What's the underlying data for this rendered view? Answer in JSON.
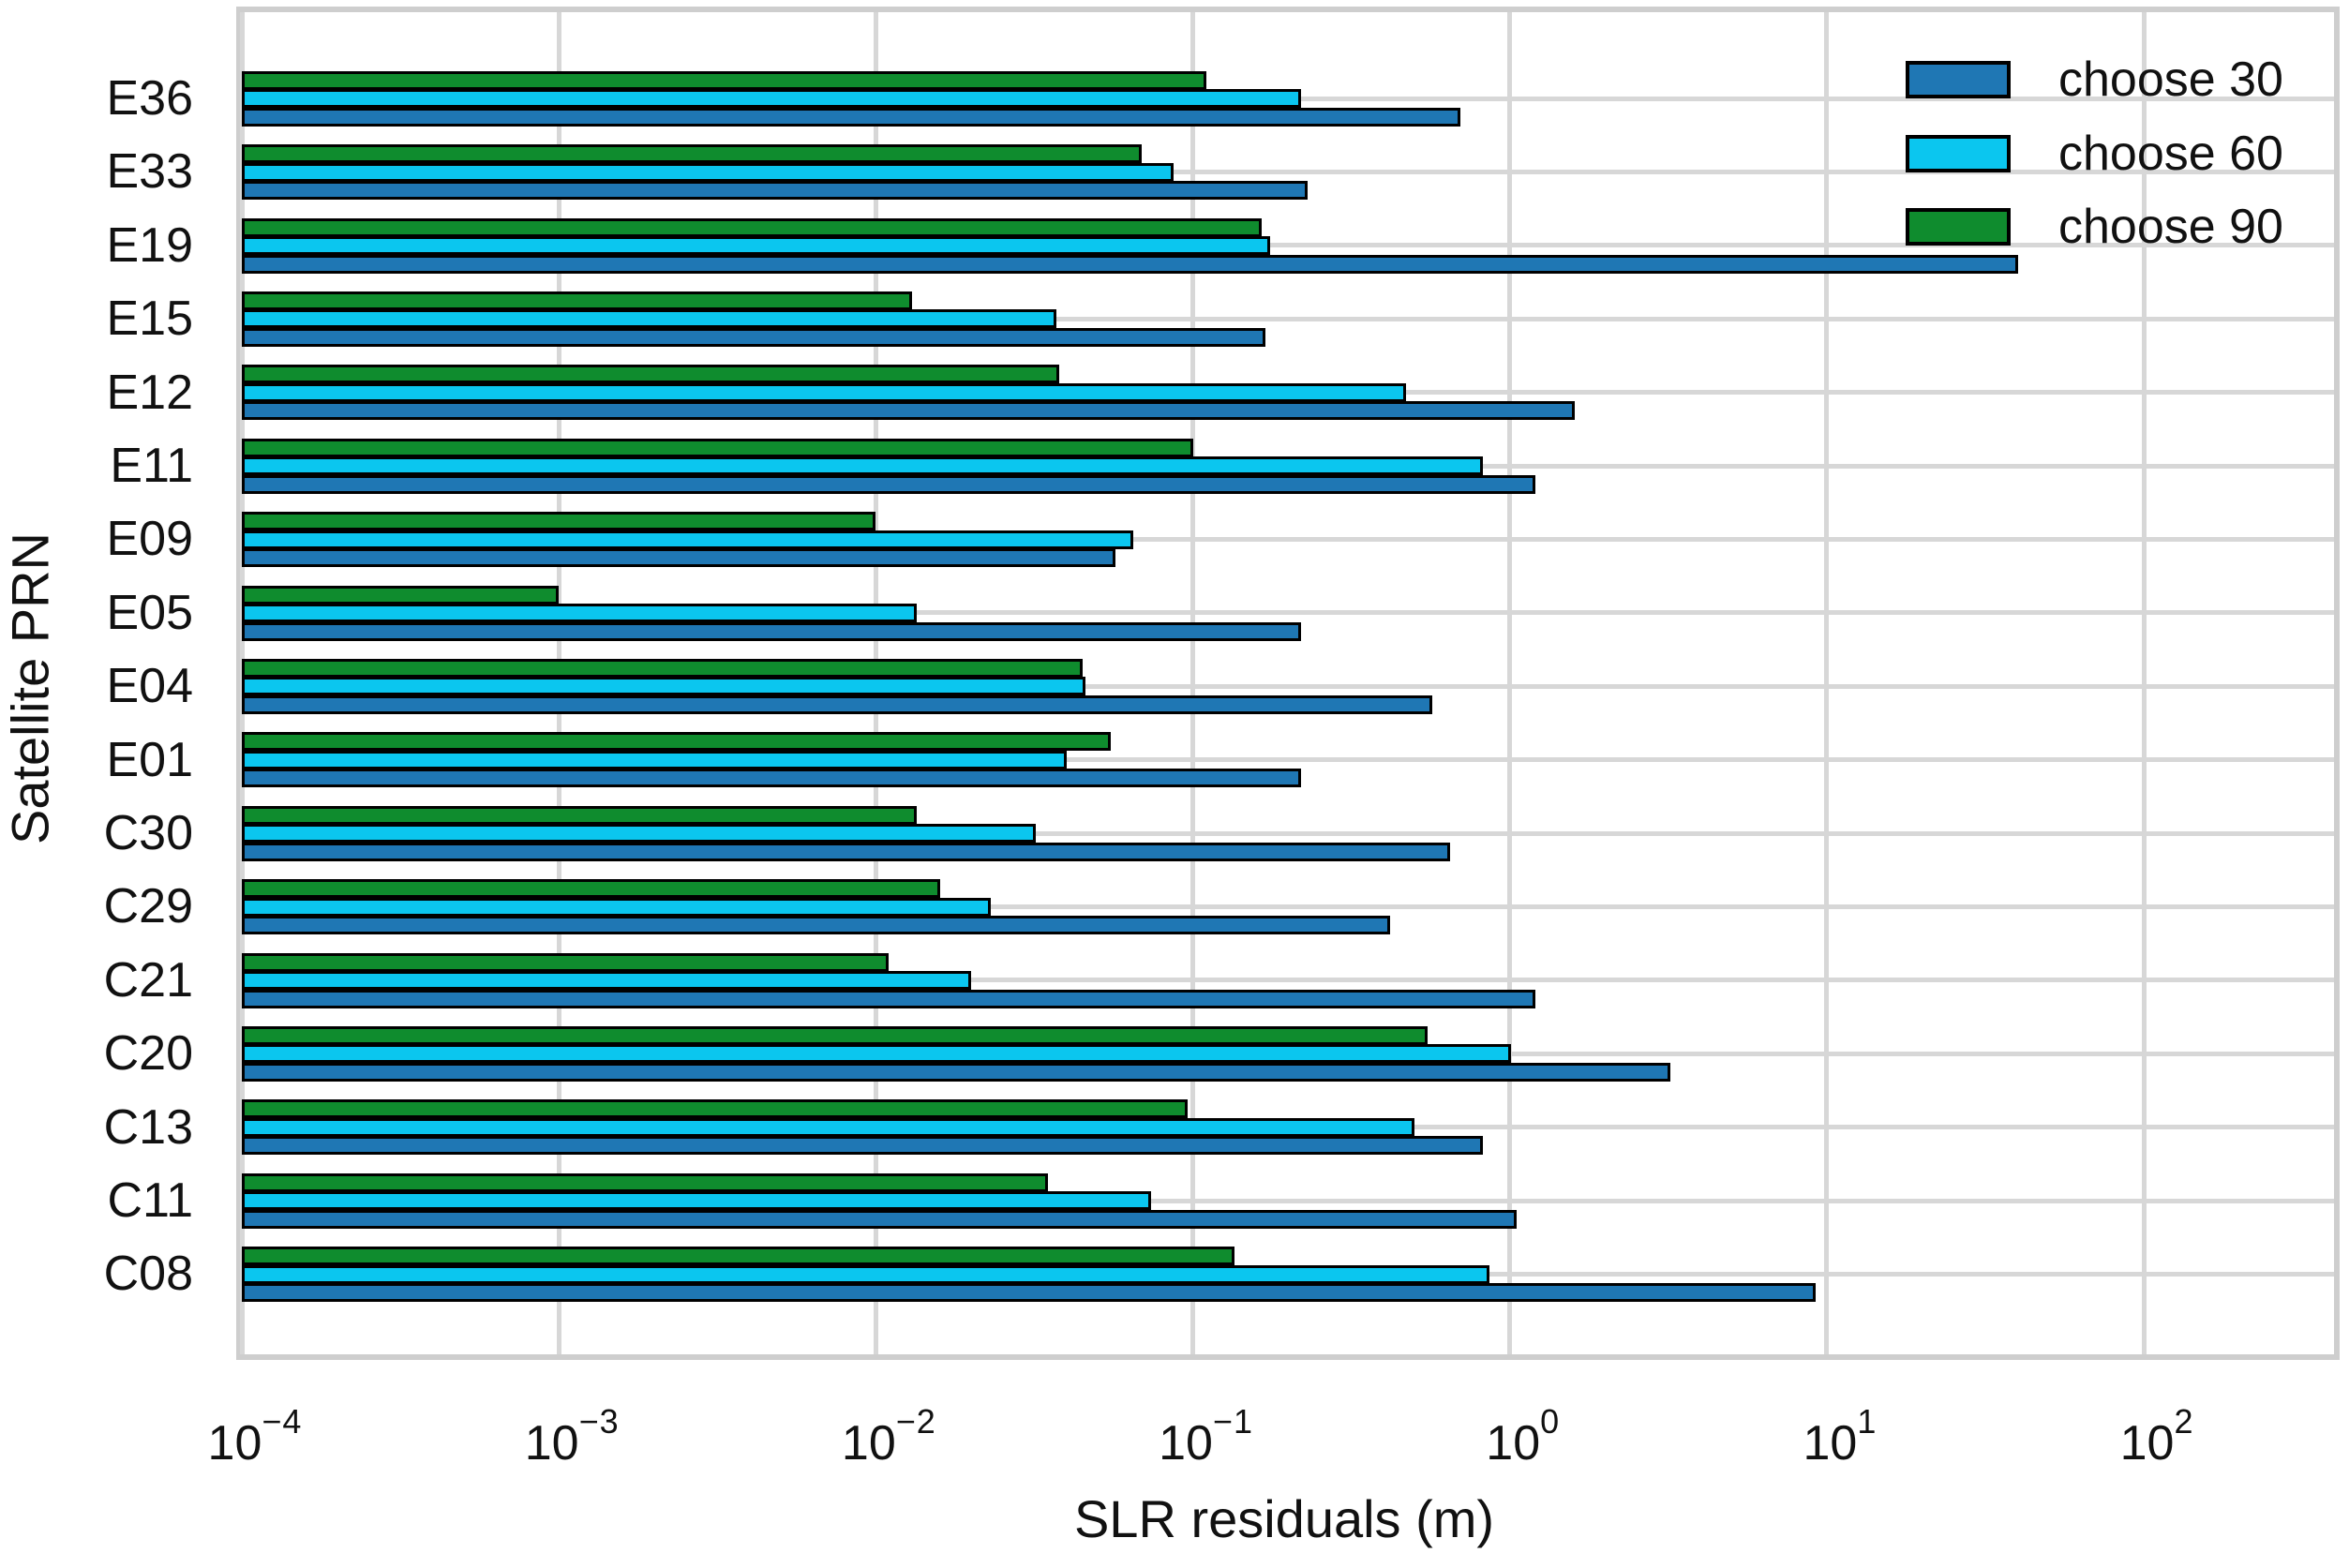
{
  "figure": {
    "xlabel": "SLR residuals (m)",
    "ylabel": "Satellite PRN"
  },
  "chart_data": {
    "type": "bar",
    "orientation": "horizontal",
    "title": "",
    "xlabel": "SLR residuals (m)",
    "ylabel": "Satellite PRN",
    "grid": true,
    "legend_position": "upper right",
    "x_axis": {
      "scale": "log",
      "min_exp": -4,
      "max_exp": 2.6,
      "tick_exponents": [
        -4,
        -3,
        -2,
        -1,
        0,
        1,
        2
      ],
      "tick_base": "10",
      "tick_exponent_labels": [
        "−4",
        "−3",
        "−2",
        "−1",
        "0",
        "1",
        "2"
      ]
    },
    "categories": [
      "E36",
      "E33",
      "E19",
      "E15",
      "E12",
      "E11",
      "E09",
      "E05",
      "E04",
      "E01",
      "C30",
      "C29",
      "C21",
      "C20",
      "C13",
      "C11",
      "C08"
    ],
    "series": [
      {
        "name": "choose 30",
        "color": "#1f77b4",
        "values": [
          0.7,
          0.23,
          40,
          0.17,
          1.6,
          1.2,
          0.057,
          0.22,
          0.57,
          0.22,
          0.65,
          0.42,
          1.2,
          3.2,
          0.82,
          1.05,
          9.2
        ]
      },
      {
        "name": "choose 60",
        "color": "#0bc6ef",
        "values": [
          0.22,
          0.087,
          0.175,
          0.037,
          0.47,
          0.82,
          0.065,
          0.0135,
          0.046,
          0.04,
          0.032,
          0.023,
          0.02,
          1.01,
          0.5,
          0.074,
          0.86
        ]
      },
      {
        "name": "choose 90",
        "color": "#0f8c2e",
        "values": [
          0.11,
          0.069,
          0.165,
          0.013,
          0.038,
          0.1,
          0.01,
          0.001,
          0.045,
          0.055,
          0.0135,
          0.016,
          0.011,
          0.55,
          0.096,
          0.035,
          0.135
        ]
      }
    ],
    "colors": {
      "grid": "#d7d7d7",
      "plot_border": "#cecece",
      "bar_edge": "#000000",
      "background": "#ffffff",
      "text": "#111111"
    }
  }
}
